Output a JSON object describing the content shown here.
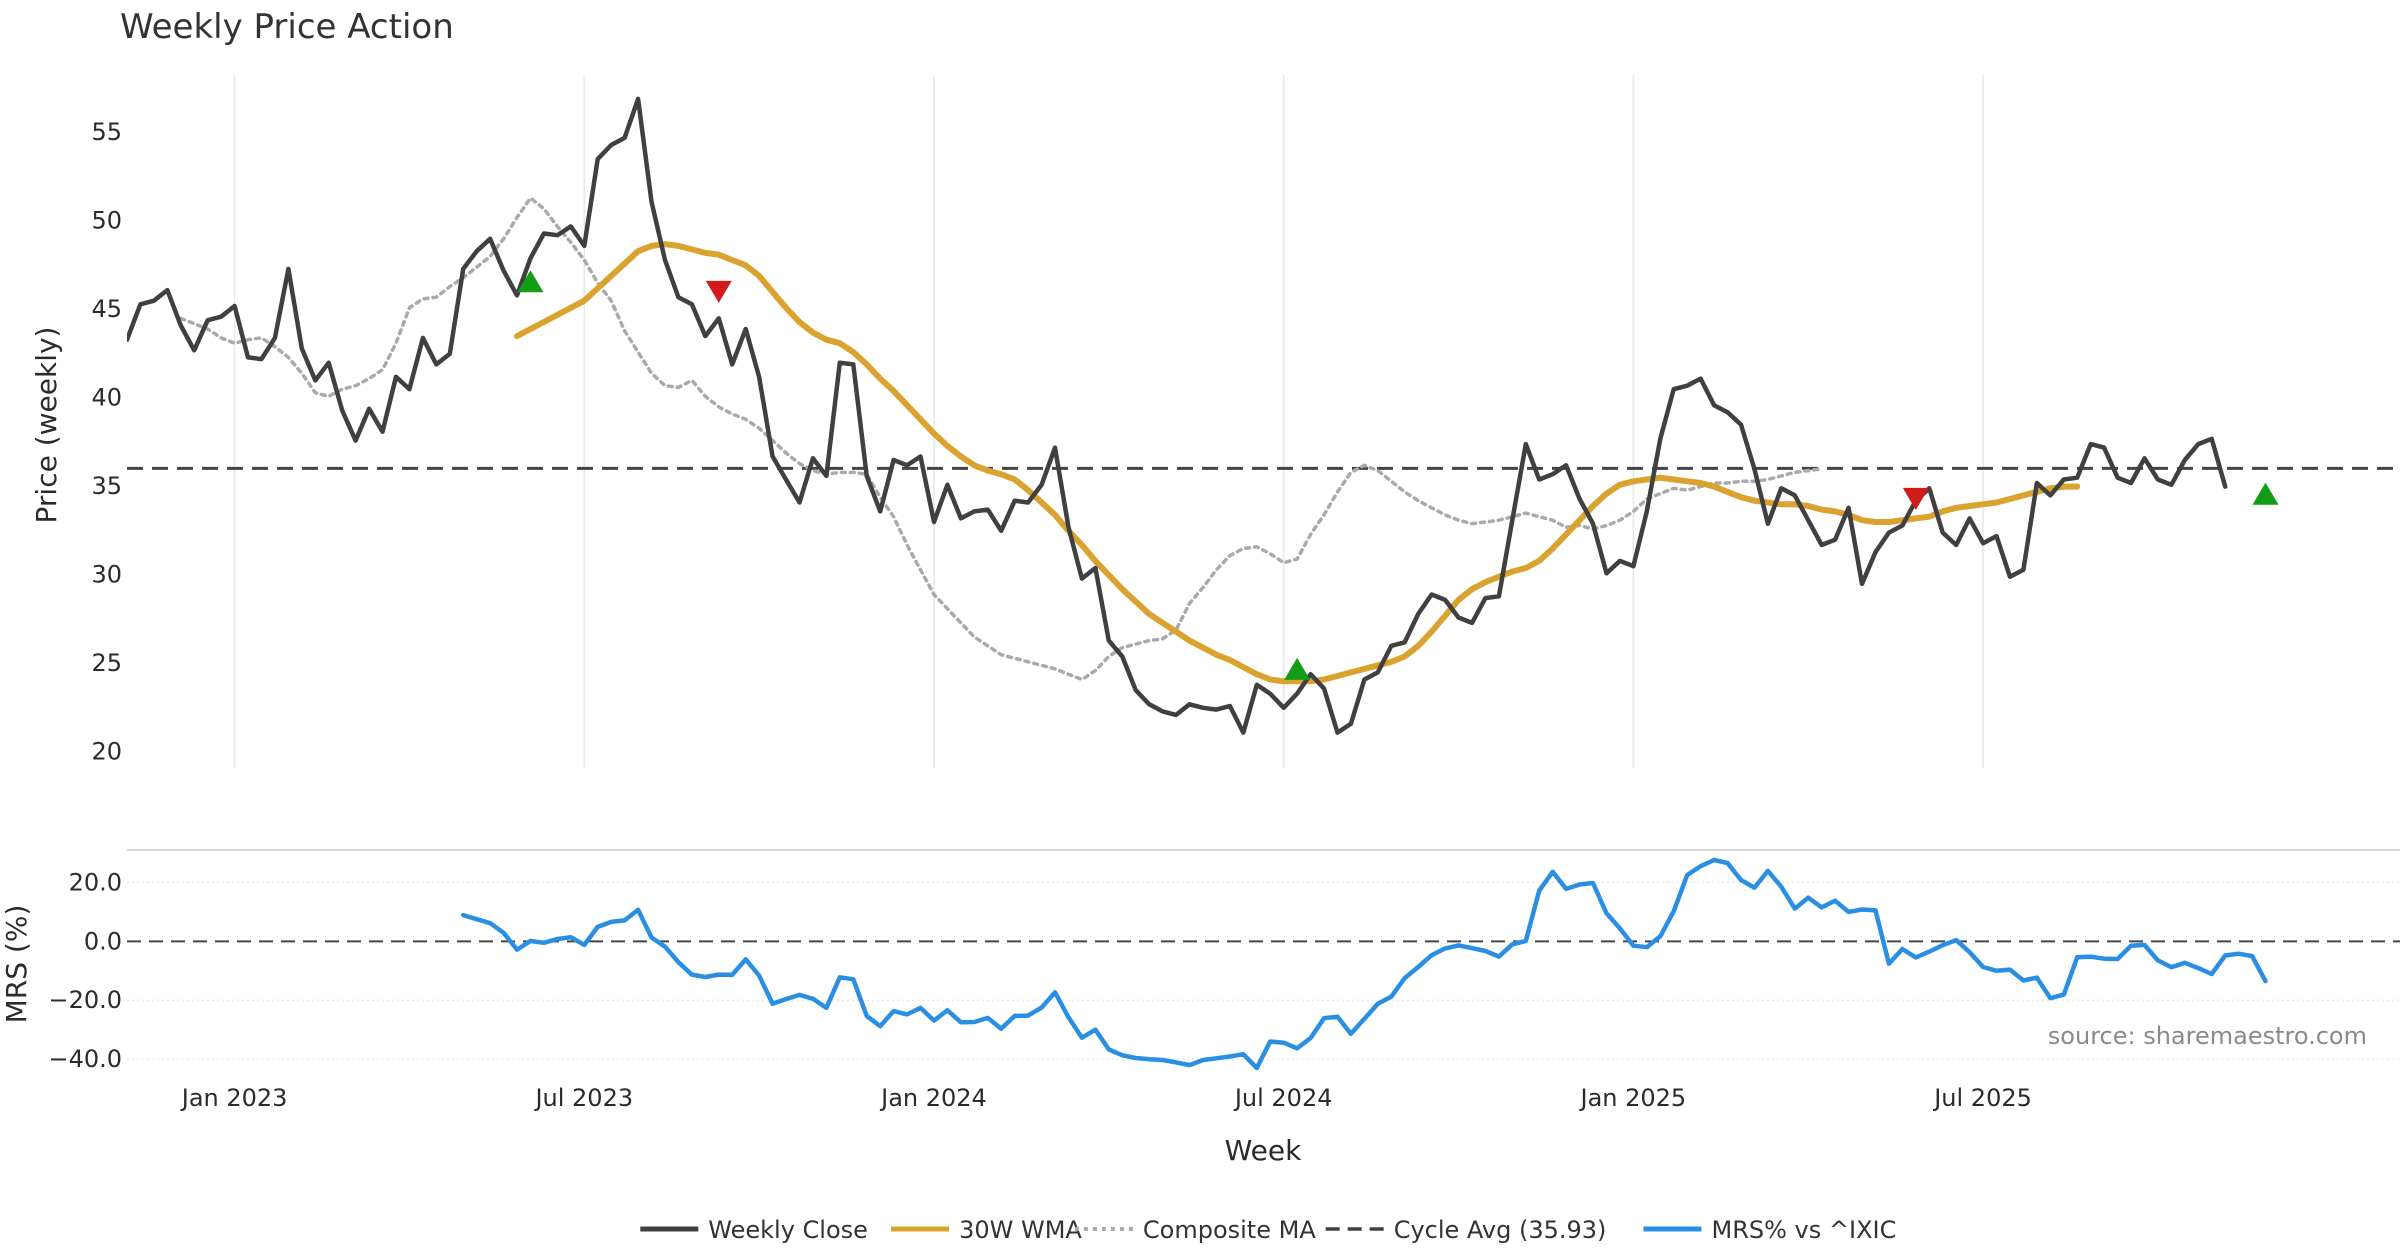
{
  "chart_data": {
    "type": "line",
    "title": "Weekly Price Action",
    "xlabel": "Week",
    "x_ticks": [
      {
        "label": "Jan 2023",
        "t": 4
      },
      {
        "label": "Jul 2023",
        "t": 30
      },
      {
        "label": "Jan 2024",
        "t": 56
      },
      {
        "label": "Jul 2024",
        "t": 82
      },
      {
        "label": "Jan 2025",
        "t": 108
      },
      {
        "label": "Jul 2025",
        "t": 134
      }
    ],
    "x_range": [
      -4,
      165
    ],
    "price_panel": {
      "ylabel": "Price (weekly)",
      "ylim": [
        19,
        59
      ],
      "y_ticks": [
        20,
        25,
        30,
        35,
        40,
        45,
        50,
        55
      ],
      "cycle_avg": 35.93,
      "series": [
        {
          "name": "Weekly Close",
          "color": "#404040",
          "start": -4,
          "values": [
            43.2,
            45.2,
            45.4,
            46,
            44,
            42.6,
            44.3,
            44.5,
            45.1,
            42.2,
            42.1,
            43.3,
            47.2,
            42.7,
            40.9,
            41.9,
            39.2,
            37.5,
            39.3,
            38,
            41.1,
            40.4,
            43.3,
            41.8,
            42.4,
            47.2,
            48.2,
            48.9,
            47.1,
            45.7,
            47.8,
            49.2,
            49.1,
            49.6,
            48.5,
            53.4,
            54.2,
            54.6,
            56.8,
            51,
            47.7,
            45.6,
            45.2,
            43.4,
            44.4,
            41.8,
            43.8,
            41.1,
            36.6,
            35.3,
            34,
            36.5,
            35.5,
            41.9,
            41.8,
            35.5,
            33.5,
            36.4,
            36.1,
            36.6,
            32.9,
            35,
            33.1,
            33.5,
            33.6,
            32.4,
            34.1,
            34,
            35,
            37.1,
            32.6,
            29.7,
            30.3,
            26.2,
            25.3,
            23.4,
            22.6,
            22.2,
            22,
            22.6,
            22.4,
            22.3,
            22.5,
            21,
            23.7,
            23.2,
            22.4,
            23.2,
            24.3,
            23.5,
            21,
            21.5,
            24,
            24.4,
            25.9,
            26.1,
            27.7,
            28.8,
            28.5,
            27.5,
            27.2,
            28.6,
            28.7,
            33,
            37.3,
            35.3,
            35.6,
            36.1,
            34.2,
            32.8,
            30,
            30.7,
            30.4,
            33.5,
            37.6,
            40.4,
            40.6,
            41,
            39.5,
            39.1,
            38.4,
            35.9,
            32.8,
            34.8,
            34.4,
            33,
            31.6,
            31.9,
            33.7,
            29.4,
            31.2,
            32.3,
            32.7,
            34.1,
            34.8,
            32.3,
            31.6,
            33.1,
            31.7,
            32.1,
            29.8,
            30.2,
            35.1,
            34.4,
            35.3,
            35.4,
            37.3,
            37.1,
            35.4,
            35.1,
            36.5,
            35.3,
            35,
            36.4,
            37.3,
            37.6,
            34.9
          ]
        },
        {
          "name": "30W WMA",
          "color": "#DAA22E",
          "start": 25,
          "values": [
            43.4,
            43.8,
            44.2,
            44.6,
            45,
            45.4,
            46.1,
            46.8,
            47.5,
            48.2,
            48.5,
            48.6,
            48.5,
            48.3,
            48.1,
            48,
            47.7,
            47.4,
            46.8,
            45.9,
            45,
            44.2,
            43.6,
            43.2,
            43,
            42.5,
            41.8,
            41,
            40.3,
            39.5,
            38.7,
            37.9,
            37.2,
            36.6,
            36.1,
            35.8,
            35.6,
            35.3,
            34.7,
            34,
            33.3,
            32.4,
            31.6,
            30.7,
            29.9,
            29.1,
            28.4,
            27.7,
            27.2,
            26.7,
            26.2,
            25.8,
            25.4,
            25.1,
            24.7,
            24.3,
            24,
            23.9,
            23.9,
            23.9,
            24,
            24.2,
            24.4,
            24.6,
            24.8,
            25,
            25.3,
            25.9,
            26.7,
            27.6,
            28.5,
            29.1,
            29.5,
            29.8,
            30.1,
            30.3,
            30.7,
            31.4,
            32.2,
            33,
            33.8,
            34.5,
            35,
            35.2,
            35.3,
            35.4,
            35.3,
            35.2,
            35.1,
            34.9,
            34.6,
            34.3,
            34.1,
            34,
            33.9,
            33.9,
            33.8,
            33.6,
            33.5,
            33.3,
            33,
            32.9,
            32.9,
            33,
            33.1,
            33.2,
            33.5,
            33.7,
            33.8,
            33.9,
            34,
            34.2,
            34.4,
            34.6,
            34.8,
            34.9,
            34.9
          ]
        },
        {
          "name": "Composite MA",
          "color": "#aaaaaa",
          "start": 0,
          "values": [
            44.4,
            44.1,
            43.8,
            43.3,
            43,
            43.2,
            43.3,
            42.8,
            42.2,
            41.3,
            40.2,
            40,
            40.4,
            40.6,
            41,
            41.5,
            43,
            45,
            45.5,
            45.6,
            46.2,
            46.7,
            47.3,
            47.9,
            48.9,
            50.1,
            51.2,
            50.6,
            49.6,
            48.7,
            47.7,
            46.4,
            45.4,
            43.7,
            42.5,
            41.3,
            40.6,
            40.5,
            40.9,
            40,
            39.4,
            39,
            38.7,
            38.2,
            37.5,
            36.8,
            36.2,
            35.8,
            35.6,
            35.7,
            35.7,
            35.6,
            34.3,
            33.2,
            31.6,
            30.2,
            28.8,
            28,
            27.2,
            26.4,
            25.9,
            25.4,
            25.2,
            25,
            24.8,
            24.6,
            24.3,
            24,
            24.5,
            25.3,
            25.8,
            26,
            26.2,
            26.3,
            26.8,
            28.3,
            29.2,
            30.2,
            31,
            31.4,
            31.5,
            31.1,
            30.6,
            30.8,
            32.2,
            33.3,
            34.6,
            35.7,
            36.1,
            35.8,
            35.2,
            34.6,
            34.1,
            33.7,
            33.3,
            33,
            32.8,
            32.9,
            33,
            33.2,
            33.4,
            33.2,
            33,
            32.6,
            32.7,
            32.5,
            32.7,
            33,
            33.5,
            34.2,
            34.5,
            34.8,
            34.7,
            34.9,
            35.1,
            35.1,
            35.2,
            35.2,
            35.3,
            35.5,
            35.7,
            35.8,
            35.9
          ]
        }
      ],
      "buy_signals": [
        {
          "t": 26,
          "value": 46.5
        },
        {
          "t": 83,
          "value": 24.6
        },
        {
          "t": 155,
          "value": 34.5
        }
      ],
      "sell_signals": [
        {
          "t": 40,
          "value": 45.9
        },
        {
          "t": 129,
          "value": 34.2
        }
      ]
    },
    "mrs_panel": {
      "ylabel": "MRS (%)",
      "ylim": [
        -43,
        31
      ],
      "y_ticks": [
        20,
        0,
        -20,
        -40
      ],
      "y_tick_labels": [
        "20.0",
        "0.0",
        "−20.0",
        "−40.0"
      ],
      "series": [
        {
          "name": "MRS% vs ^IXIC",
          "color": "#2A8FE3",
          "start": 21,
          "values": [
            8.9,
            7.5,
            6.2,
            2.9,
            -2.8,
            0.1,
            -0.5,
            0.8,
            1.4,
            -1.2,
            4.9,
            6.6,
            7.1,
            10.7,
            1.3,
            -1.8,
            -7.1,
            -11.3,
            -12.1,
            -11.3,
            -11.4,
            -6.1,
            -11.6,
            -21.2,
            -19.6,
            -18.2,
            -19.5,
            -22.6,
            -12.2,
            -12.9,
            -25.3,
            -28.8,
            -23.7,
            -24.8,
            -22.6,
            -26.9,
            -23.4,
            -27.5,
            -27.4,
            -26,
            -29.7,
            -25.3,
            -25.2,
            -22.5,
            -17.3,
            -25.8,
            -32.7,
            -30,
            -36.7,
            -38.7,
            -39.6,
            -40,
            -40.3,
            -41.1,
            -42,
            -40.3,
            -39.7,
            -39.1,
            -38.3,
            -43,
            -34,
            -34.4,
            -36.3,
            -32.8,
            -26.1,
            -25.6,
            -31.4,
            -26.3,
            -21.2,
            -18.8,
            -12.5,
            -8.7,
            -4.7,
            -2.4,
            -1.4,
            -2.3,
            -3.3,
            -5.2,
            -1,
            0.1,
            17.2,
            23.6,
            17.8,
            19.3,
            19.8,
            9.5,
            4.4,
            -1.5,
            -2,
            1.7,
            10.2,
            22.5,
            25.5,
            27.6,
            26.6,
            20.8,
            18.2,
            23.9,
            18.5,
            11.1,
            14.8,
            11.5,
            13.8,
            10,
            10.8,
            10.5,
            -7.6,
            -2.6,
            -5.5,
            -3.5,
            -1.3,
            0.4,
            -3.7,
            -8.7,
            -10,
            -9.6,
            -13.3,
            -12.3,
            -19.3,
            -18.1,
            -5.4,
            -5.2,
            -5.9,
            -6,
            -1.5,
            -1.2,
            -6.5,
            -8.8,
            -7.3,
            -9.1,
            -11.1,
            -4.8,
            -4.2,
            -5,
            -13.5
          ]
        }
      ]
    },
    "legend": {
      "placement": "bottom-center",
      "entries": [
        {
          "label": "Weekly Close",
          "color": "#404040",
          "style": "solid"
        },
        {
          "label": "30W WMA",
          "color": "#DAA22E",
          "style": "solid"
        },
        {
          "label": "Composite MA",
          "color": "#aaaaaa",
          "style": "dotted"
        },
        {
          "label": "Cycle Avg (35.93)",
          "color": "#404040",
          "style": "dashed"
        },
        {
          "label": "MRS% vs ^IXIC",
          "color": "#2A8FE3",
          "style": "solid"
        }
      ]
    },
    "source": "source: sharemaestro.com",
    "signal_colors": {
      "buy": "#139C16",
      "sell": "#D11A1A"
    }
  }
}
